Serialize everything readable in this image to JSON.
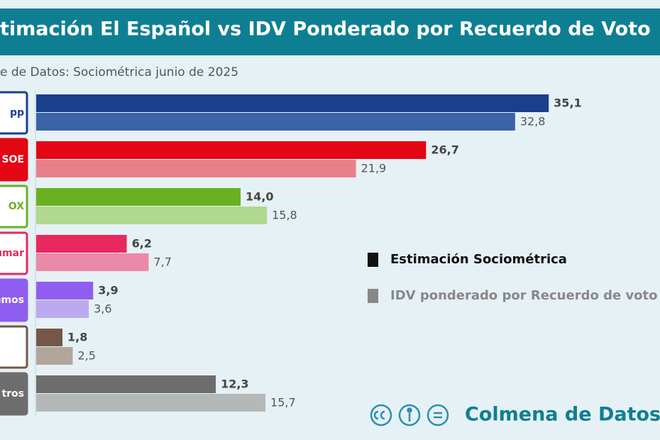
{
  "chart_data": {
    "type": "bar",
    "orientation": "horizontal",
    "title": "timación El Español vs IDV Ponderado por Recuerdo de Voto",
    "subtitle": "e de Datos: Sociométrica junio de 2025",
    "categories": [
      "pp",
      "SOE",
      "OX",
      "umar",
      "demos",
      null,
      "tros"
    ],
    "series": [
      {
        "name": "Estimación Sociométrica",
        "color": "#111111",
        "bar_colors": [
          "#1a3f8c",
          "#e30613",
          "#6ab023",
          "#e8285e",
          "#8f5ef0",
          "#735848",
          "#6d6d6d"
        ],
        "values": [
          35.1,
          26.7,
          14.0,
          6.2,
          3.9,
          1.8,
          12.3
        ],
        "value_labels": [
          "35,1",
          "26,7",
          "14,0",
          "6,2",
          "3,9",
          "1,8",
          "12,3"
        ]
      },
      {
        "name": "IDV ponderado por Recuerdo de voto",
        "color": "#888888",
        "bar_colors": [
          "#3a63a8",
          "#e8808a",
          "#b0d88e",
          "#ea8aa8",
          "#bcaaf0",
          "#b0a69c",
          "#b4b8b8"
        ],
        "values": [
          32.8,
          21.9,
          15.8,
          7.7,
          3.6,
          2.5,
          15.7
        ],
        "value_labels": [
          "32,8",
          "21,9",
          "15,8",
          "7,7",
          "3,6",
          "2,5",
          "15,7"
        ]
      }
    ],
    "xlim": [
      0,
      40
    ],
    "logo_fills": [
      "#ffffff",
      "#e30613",
      "#ffffff",
      "#ffffff",
      "#8f5ef0",
      "#ffffff",
      "#6d6d6d"
    ],
    "logo_borders": [
      "#1a3f8c",
      "#e30613",
      "#6ab023",
      "#e8285e",
      "#8f5ef0",
      "#735848",
      "#6d6d6d"
    ],
    "logo_text_colors": [
      "#1a3f8c",
      "#ffffff",
      "#6ab023",
      "#e8285e",
      "#ffffff",
      "#735848",
      "#ffffff"
    ]
  },
  "footer": {
    "brand": "Colmena de Datos"
  }
}
